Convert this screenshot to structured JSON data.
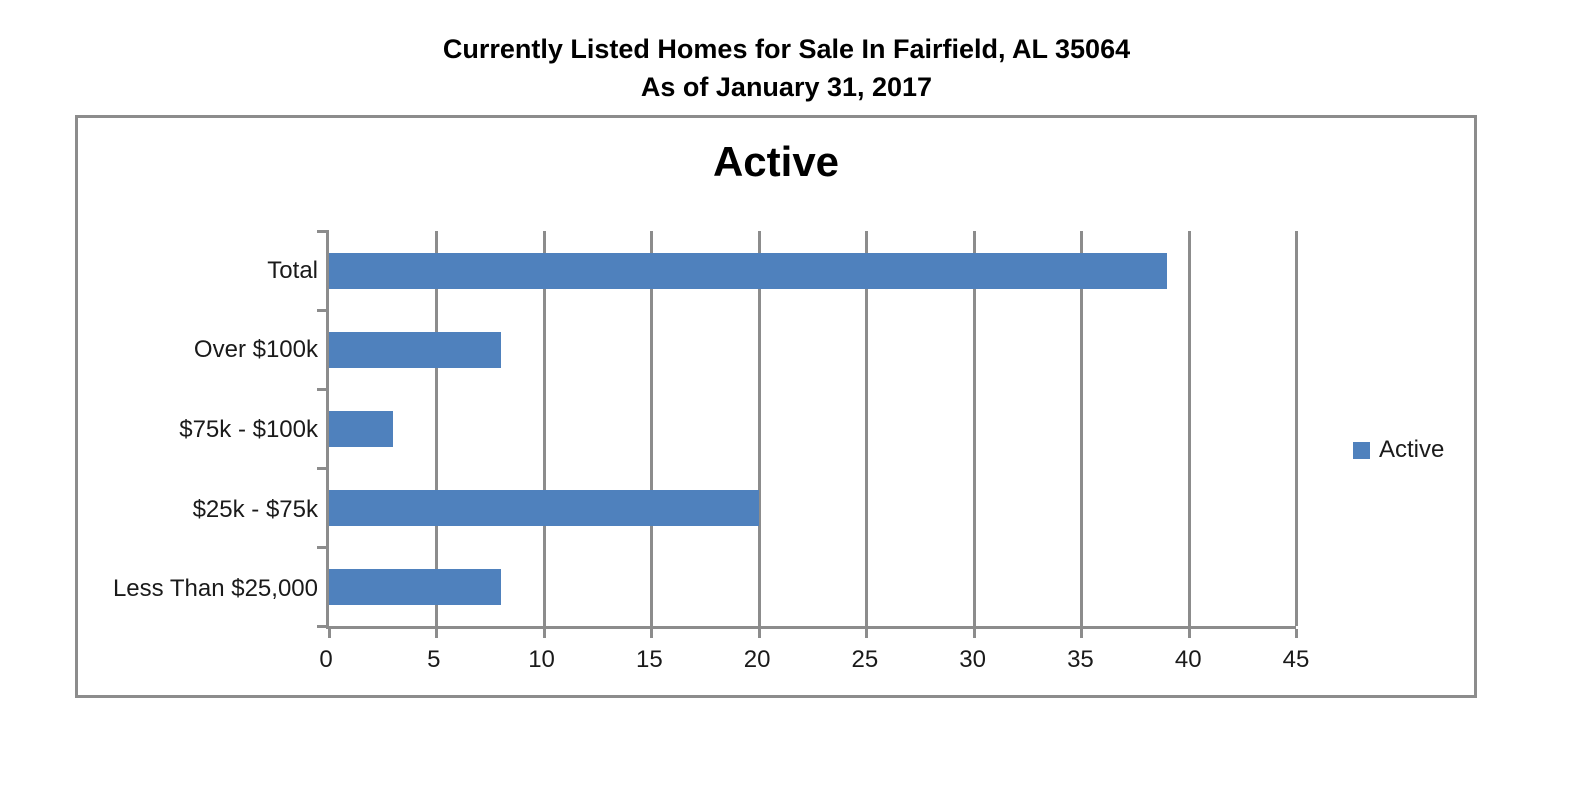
{
  "header": {
    "title_line1": "Currently Listed Homes for Sale In Fairfield, AL 35064",
    "title_line2": "As of January 31, 2017"
  },
  "chart_data": {
    "type": "bar",
    "orientation": "horizontal",
    "title": "Active",
    "categories": [
      "Total",
      "Over $100k",
      "$75k - $100k",
      "$25k - $75k",
      "Less Than $25,000"
    ],
    "values": [
      39,
      8,
      3,
      20,
      8
    ],
    "xlim": [
      0,
      45
    ],
    "x_ticks": [
      0,
      5,
      10,
      15,
      20,
      25,
      30,
      35,
      40,
      45
    ],
    "xlabel": "",
    "ylabel": "",
    "grid": true,
    "legend": {
      "position": "right",
      "entries": [
        {
          "label": "Active",
          "color": "#4F81BD"
        }
      ]
    },
    "colors": {
      "bar": "#4F81BD",
      "axis": "#8C8C8C",
      "gridline": "#8C8C8C",
      "frame_border": "#8C8C8C",
      "text": "#000000"
    }
  }
}
